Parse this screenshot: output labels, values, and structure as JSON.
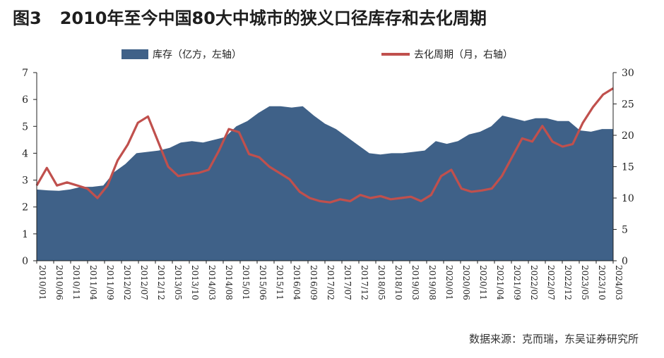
{
  "figure": {
    "number": "图3",
    "title": "2010年至今中国80大中城市的狭义口径库存和去化周期",
    "source": "数据来源：克而瑞，东吴证券研究所"
  },
  "colors": {
    "area": "#3f6188",
    "line": "#c0504d",
    "axis": "#222222"
  },
  "chart_data": {
    "type": "area",
    "x_ticks": [
      "2010/01",
      "2010/06",
      "2010/11",
      "2011/04",
      "2011/09",
      "2012/02",
      "2012/07",
      "2012/12",
      "2013/05",
      "2013/10",
      "2014/03",
      "2014/08",
      "2015/01",
      "2015/06",
      "2015/11",
      "2016/04",
      "2016/09",
      "2017/02",
      "2017/07",
      "2017/12",
      "2018/05",
      "2018/10",
      "2019/03",
      "2019/08",
      "2020/01",
      "2020/06",
      "2020/11",
      "2021/04",
      "2021/09",
      "2022/02",
      "2022/07",
      "2022/12",
      "2023/05",
      "2023/10",
      "2024/03"
    ],
    "y_left": {
      "label": "",
      "ylim": [
        0,
        7
      ],
      "ticks": [
        0,
        1,
        2,
        3,
        4,
        5,
        6,
        7
      ]
    },
    "y_right": {
      "label": "",
      "ylim": [
        0,
        30
      ],
      "ticks": [
        0,
        5,
        10,
        15,
        20,
        25,
        30
      ]
    },
    "legend": {
      "position": "top",
      "items": [
        "库存（亿方，左轴）",
        "去化周期（月，右轴）"
      ]
    },
    "series": [
      {
        "name": "库存（亿方，左轴）",
        "type": "area",
        "axis": "left",
        "values": [
          2.65,
          2.62,
          2.6,
          2.65,
          2.75,
          2.75,
          2.8,
          3.3,
          3.6,
          4.0,
          4.05,
          4.1,
          4.2,
          4.4,
          4.45,
          4.4,
          4.5,
          4.6,
          5.0,
          5.2,
          5.5,
          5.75,
          5.75,
          5.7,
          5.75,
          5.4,
          5.1,
          4.9,
          4.6,
          4.3,
          4.0,
          3.95,
          4.0,
          4.0,
          4.05,
          4.1,
          4.45,
          4.35,
          4.45,
          4.7,
          4.8,
          5.0,
          5.4,
          5.3,
          5.2,
          5.3,
          5.3,
          5.2,
          5.2,
          4.85,
          4.8,
          4.9,
          4.9
        ]
      },
      {
        "name": "去化周期（月，右轴）",
        "type": "line",
        "axis": "right",
        "values": [
          12.0,
          14.8,
          12.0,
          12.5,
          12.0,
          11.5,
          10.0,
          12.0,
          16.0,
          18.5,
          22.0,
          23.0,
          19.0,
          15.0,
          13.5,
          13.8,
          14.0,
          14.5,
          17.5,
          21.0,
          20.5,
          17.0,
          16.5,
          15.0,
          14.0,
          13.0,
          11.0,
          10.0,
          9.5,
          9.3,
          9.8,
          9.5,
          10.5,
          10.0,
          10.3,
          9.8,
          10.0,
          10.2,
          9.5,
          10.5,
          13.5,
          14.5,
          11.5,
          11.0,
          11.2,
          11.5,
          13.5,
          16.5,
          19.5,
          19.0,
          21.5,
          19.0,
          18.2,
          18.6,
          22.0,
          24.5,
          26.5,
          27.5
        ]
      }
    ]
  }
}
